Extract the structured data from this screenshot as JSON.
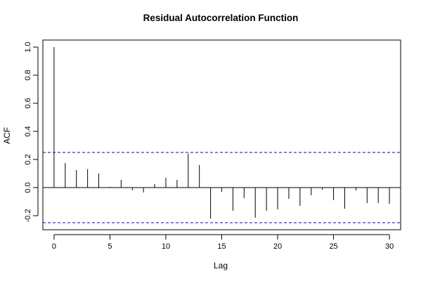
{
  "chart_data": {
    "type": "bar",
    "title": "Residual Autocorrelation Function",
    "xlabel": "Lag",
    "ylabel": "ACF",
    "xlim": [
      -1,
      31
    ],
    "ylim": [
      -0.3,
      1.05
    ],
    "x_ticks": [
      0,
      5,
      10,
      15,
      20,
      25,
      30
    ],
    "y_ticks": [
      -0.2,
      0.0,
      0.2,
      0.4,
      0.6,
      0.8,
      1.0
    ],
    "x_tick_labels": [
      "0",
      "5",
      "10",
      "15",
      "20",
      "25",
      "30"
    ],
    "y_tick_labels": [
      "-0.2",
      "0.0",
      "0.2",
      "0.4",
      "0.6",
      "0.8",
      "1.0"
    ],
    "confidence_bounds": [
      0.25,
      -0.25
    ],
    "confidence_color": "#0000cc",
    "lags": [
      0,
      1,
      2,
      3,
      4,
      5,
      6,
      7,
      8,
      9,
      10,
      11,
      12,
      13,
      14,
      15,
      16,
      17,
      18,
      19,
      20,
      21,
      22,
      23,
      24,
      25,
      26,
      27,
      28,
      29,
      30
    ],
    "values": [
      1.0,
      0.175,
      0.125,
      0.13,
      0.1,
      0.005,
      0.055,
      -0.02,
      -0.035,
      0.025,
      0.07,
      0.055,
      0.24,
      0.16,
      -0.22,
      -0.03,
      -0.165,
      -0.075,
      -0.215,
      -0.165,
      -0.155,
      -0.08,
      -0.13,
      -0.055,
      -0.015,
      -0.09,
      -0.15,
      -0.02,
      -0.11,
      -0.11,
      -0.115
    ],
    "grid": false,
    "legend": "none"
  }
}
